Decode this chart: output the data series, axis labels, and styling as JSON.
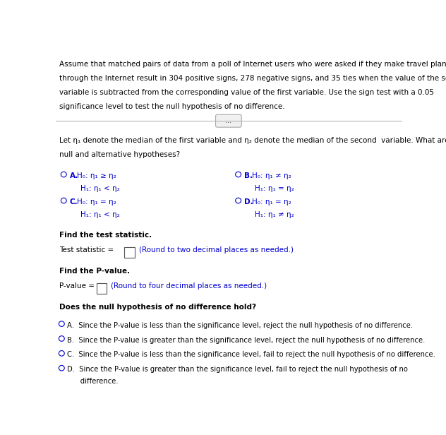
{
  "bg_color": "#ffffff",
  "text_color": "#000000",
  "blue_color": "#0000cd",
  "header_lines": [
    "Assume that matched pairs of data from a poll of Internet users who were asked if they make travel plans",
    "through the Internet result in 304 positive signs, 278 negative signs, and 35 ties when the value of the secon",
    "variable is subtracted from the corresponding value of the first variable. Use the sign test with a 0.05",
    "significance level to test the null hypothesis of no difference."
  ],
  "divider_label": "...",
  "intro_lines": [
    "Let η₁ denote the median of the first variable and η₂ denote the median of the second  variable. What are th",
    "null and alternative hypotheses?"
  ],
  "optA_label": "A.",
  "optA_h0": "H₀: η₁ ≥ η₂",
  "optA_h1": "H₁: η₁ < η₂",
  "optB_label": "B.",
  "optB_h0": "H₀: η₁ ≠ η₂",
  "optB_h1": "H₁: η₁ = η₂",
  "optC_label": "C.",
  "optC_h0": "H₀: η₁ = η₂",
  "optC_h1": "H₁: η₁ < η₂",
  "optD_label": "D.",
  "optD_h0": "H₀: η₁ = η₂",
  "optD_h1": "H₁: η₁ ≠ η₂",
  "find_stat": "Find the test statistic.",
  "test_stat_label": "Test statistic =",
  "test_stat_hint": "(Round to two decimal places as needed.)",
  "find_pval": "Find the P-value.",
  "pval_label": "P-value =",
  "pval_hint": "(Round to four decimal places as needed.)",
  "does_hold": "Does the null hypothesis of no difference hold?",
  "ansA": "A.  Since the P-value is less than the significance level, reject the null hypothesis of no difference.",
  "ansB": "B.  Since the P-value is greater than the significance level, reject the null hypothesis of no difference.",
  "ansC": "C.  Since the P-value is less than the significance level, fail to reject the null hypothesis of no difference.",
  "ansD_line1": "D.  Since the P-value is greater than the significance level, fail to reject the null hypothesis of no",
  "ansD_line2": "      difference."
}
